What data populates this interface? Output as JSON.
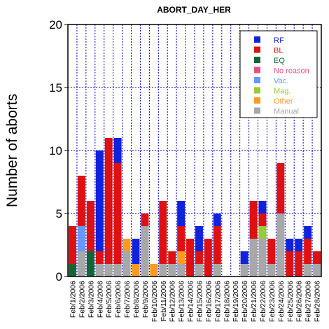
{
  "chart_data": {
    "type": "bar",
    "stacked": true,
    "title": "ABORT_DAY_HER",
    "xlabel": "",
    "ylabel": "Number of aborts",
    "ylim": [
      0,
      20
    ],
    "yticks": [
      0,
      5,
      10,
      15,
      20
    ],
    "grid": true,
    "legend_position": "top-right",
    "categories": [
      "Feb/1/2006",
      "Feb/2/2006",
      "Feb/3/2006",
      "Feb/4/2006",
      "Feb/5/2006",
      "Feb/6/2006",
      "Feb/7/2006",
      "Feb/8/2006",
      "Feb/9/2006",
      "Feb/10/2006",
      "Feb/11/2006",
      "Feb/12/2006",
      "Feb/13/2006",
      "Feb/14/2006",
      "Feb/15/2006",
      "Feb/16/2006",
      "Feb/17/2006",
      "Feb/18/2006",
      "Feb/19/2006",
      "Feb/20/2006",
      "Feb/21/2006",
      "Feb/22/2006",
      "Feb/23/2006",
      "Feb/24/2006",
      "Feb/25/2006",
      "Feb/26/2006",
      "Feb/27/2006",
      "Feb/28/2006"
    ],
    "series": [
      {
        "name": "Manual",
        "color": "#a8a8a8",
        "values": [
          0,
          2,
          0,
          1,
          1,
          1,
          2,
          0,
          4,
          0,
          1,
          1,
          1,
          0,
          1,
          0,
          1,
          0,
          0,
          1,
          3,
          3,
          1,
          5,
          0,
          0,
          1,
          1
        ]
      },
      {
        "name": "Other",
        "color": "#ff9922",
        "values": [
          0,
          0,
          0,
          0,
          0,
          0,
          1,
          1,
          0,
          1,
          0,
          0,
          1,
          0,
          0,
          0,
          0,
          0,
          0,
          0,
          0,
          0,
          0,
          0,
          0,
          0,
          0,
          0
        ]
      },
      {
        "name": "Mag.",
        "color": "#99cc33",
        "values": [
          0,
          0,
          0,
          0,
          0,
          0,
          0,
          0,
          0,
          0,
          0,
          0,
          0,
          0,
          0,
          0,
          0,
          0,
          0,
          0,
          0,
          1,
          0,
          0,
          0,
          0,
          0,
          0
        ]
      },
      {
        "name": "Vac.",
        "color": "#6699ff",
        "values": [
          0,
          2,
          0,
          0,
          0,
          0,
          0,
          0,
          0,
          0,
          0,
          0,
          0,
          0,
          0,
          0,
          0,
          0,
          0,
          0,
          0,
          0,
          0,
          0,
          0,
          0,
          0,
          0
        ]
      },
      {
        "name": "No reason",
        "color": "#e8508a",
        "values": [
          0,
          0,
          0,
          0,
          0,
          0,
          0,
          0,
          0,
          0,
          0,
          0,
          0,
          0,
          0,
          0,
          0,
          0,
          0,
          0,
          0,
          0,
          0,
          0,
          0,
          0,
          0,
          0
        ]
      },
      {
        "name": "EQ",
        "color": "#116633",
        "values": [
          1,
          0,
          2,
          0,
          0,
          0,
          0,
          0,
          0,
          0,
          0,
          0,
          0,
          0,
          0,
          0,
          0,
          0,
          0,
          0,
          0,
          0,
          0,
          0,
          0,
          0,
          0,
          0
        ]
      },
      {
        "name": "BL",
        "color": "#dd1111",
        "values": [
          3,
          4,
          4,
          1,
          10,
          8,
          0,
          0,
          1,
          0,
          5,
          1,
          2,
          3,
          1,
          3,
          3,
          0,
          0,
          0,
          3,
          1,
          2,
          4,
          2,
          2,
          2,
          1
        ]
      },
      {
        "name": "RF",
        "color": "#1122dd",
        "values": [
          0,
          0,
          0,
          8,
          0,
          2,
          0,
          2,
          0,
          0,
          0,
          0,
          2,
          0,
          2,
          0,
          1,
          0,
          0,
          1,
          0,
          1,
          0,
          0,
          1,
          1,
          1,
          0
        ]
      }
    ],
    "legend_order": [
      "RF",
      "BL",
      "EQ",
      "No reason",
      "Vac.",
      "Mag.",
      "Other",
      "Manual"
    ]
  }
}
